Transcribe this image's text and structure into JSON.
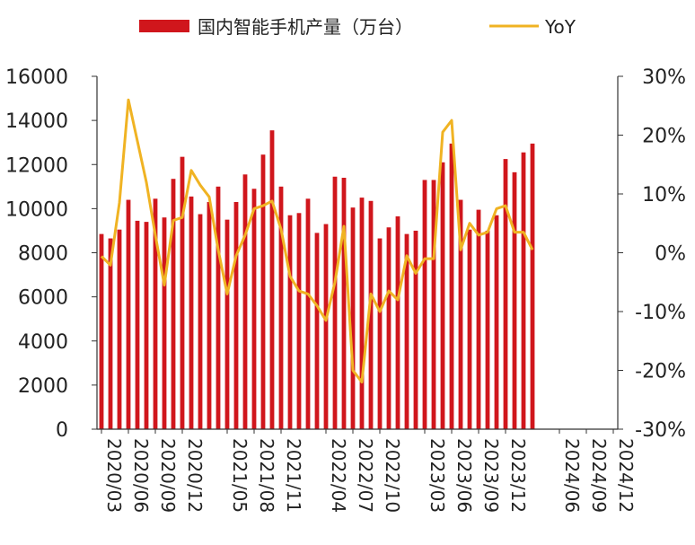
{
  "chart_data": {
    "type": "bar",
    "title": "",
    "legend": {
      "placement": "top",
      "items": [
        {
          "label": "国内智能手机产量（万台）",
          "kind": "bar",
          "color": "#D0161C"
        },
        {
          "label": "YoY",
          "kind": "line",
          "color": "#F0B323"
        }
      ]
    },
    "categories": [
      "2020/03",
      "2020/04",
      "2020/05",
      "2020/06",
      "2020/07",
      "2020/08",
      "2020/09",
      "2020/10",
      "2020/11",
      "2020/12",
      "2021/01",
      "2021/02",
      "2021/03",
      "2021/04",
      "2021/05",
      "2021/06",
      "2021/07",
      "2021/08",
      "2021/09",
      "2021/10",
      "2021/11",
      "2021/12",
      "2022/01",
      "2022/02",
      "2022/03",
      "2022/04",
      "2022/05",
      "2022/06",
      "2022/07",
      "2022/08",
      "2022/09",
      "2022/10",
      "2022/11",
      "2022/12",
      "2023/01",
      "2023/02",
      "2023/03",
      "2023/04",
      "2023/05",
      "2023/06",
      "2023/07",
      "2023/08",
      "2023/09",
      "2023/10",
      "2023/11",
      "2023/12",
      "2024/01",
      "2024/02",
      "2024/03",
      "2024/04",
      "2024/05",
      "2024/06",
      "2024/07",
      "2024/08",
      "2024/09",
      "2024/10",
      "2024/11",
      "2024/12"
    ],
    "x_tick_labels": [
      "2020/03",
      "2020/06",
      "2020/09",
      "2020/12",
      "2021/05",
      "2021/08",
      "2021/11",
      "2022/04",
      "2022/07",
      "2022/10",
      "2023/03",
      "2023/06",
      "2023/09",
      "2023/12",
      "2024/06",
      "2024/09",
      "2024/12"
    ],
    "series": [
      {
        "name": "国内智能手机产量（万台）",
        "axis": "left",
        "values": [
          8850,
          8650,
          9050,
          10400,
          9450,
          9400,
          10450,
          9600,
          11350,
          12350,
          10550,
          9750,
          10300,
          11000,
          9500,
          10300,
          11550,
          10900,
          12450,
          13550,
          11000,
          9700,
          9800,
          10450,
          8900,
          9300,
          11450,
          11400,
          10050,
          10500,
          10350,
          8650,
          9150,
          9650,
          8850,
          9000,
          11300,
          11300,
          12100,
          12950,
          10400,
          9050,
          9950,
          9000,
          9700,
          12250,
          11650,
          12550,
          12950,
          null,
          null,
          null,
          null,
          null,
          null,
          null,
          null,
          null
        ]
      },
      {
        "name": "YoY",
        "axis": "right",
        "values": [
          -0.6,
          -2.1,
          8.5,
          26.0,
          19.0,
          12.0,
          3.0,
          -5.5,
          5.5,
          6.0,
          14.0,
          11.5,
          9.5,
          0.5,
          -7.0,
          -0.5,
          3.0,
          7.5,
          8.0,
          8.8,
          4.0,
          -4.0,
          -6.5,
          -7.0,
          -9.0,
          -11.5,
          -5.0,
          4.5,
          -20.0,
          -22.0,
          -7.0,
          -10.0,
          -6.5,
          -8.0,
          -0.5,
          -3.5,
          -1.0,
          -1.0,
          20.5,
          22.5,
          0.5,
          5.0,
          3.0,
          3.5,
          7.5,
          8.0,
          3.5,
          3.5,
          0.5,
          null,
          null,
          null,
          null,
          null,
          null,
          null,
          null,
          null
        ]
      }
    ],
    "y_left": {
      "min": 0,
      "max": 16000,
      "ticks": [
        "0",
        "2000",
        "4000",
        "6000",
        "8000",
        "10000",
        "12000",
        "14000",
        "16000"
      ]
    },
    "y_right": {
      "min": -30,
      "max": 30,
      "ticks": [
        "-30%",
        "-20%",
        "-10%",
        "0%",
        "10%",
        "20%",
        "30%"
      ]
    },
    "grid": false
  }
}
